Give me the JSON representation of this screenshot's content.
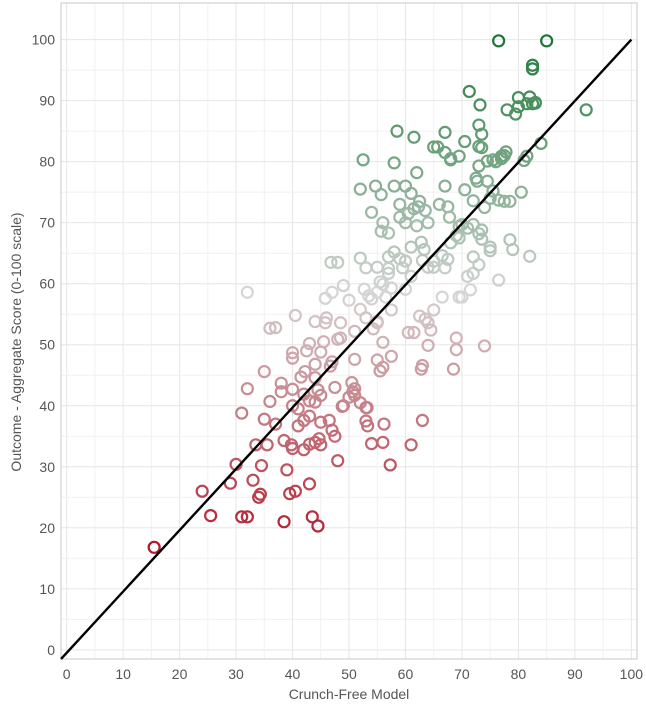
{
  "chart_data": {
    "type": "scatter",
    "title": "",
    "xlabel": "Crunch-Free Model",
    "ylabel": "Outcome - Aggregate Score (0-100 scale)",
    "xlim": [
      -1,
      101
    ],
    "ylim": [
      -1.5,
      106
    ],
    "x_ticks": [
      0,
      10,
      20,
      30,
      40,
      50,
      60,
      70,
      80,
      90,
      100
    ],
    "y_ticks": [
      0,
      10,
      20,
      30,
      40,
      50,
      60,
      70,
      80,
      90,
      100
    ],
    "grid": true,
    "legend": "none",
    "marker": "open-circle",
    "color_scale": {
      "encodes": "y",
      "domain": [
        17,
        100
      ],
      "low": "#b2182b",
      "mid": "#d6d6d6",
      "high": "#1b7837"
    },
    "reference_line": {
      "from": [
        -1,
        -1.5
      ],
      "to": [
        100,
        100
      ],
      "color": "#000000"
    },
    "points": [
      [
        15.5,
        16.8
      ],
      [
        24,
        26
      ],
      [
        25.5,
        22
      ],
      [
        29,
        27.3
      ],
      [
        30,
        30.4
      ],
      [
        31,
        38.8
      ],
      [
        31,
        21.8
      ],
      [
        32,
        21.8
      ],
      [
        32,
        42.8
      ],
      [
        32,
        58.6
      ],
      [
        33,
        27.8
      ],
      [
        33.5,
        33.6
      ],
      [
        34,
        25
      ],
      [
        34.3,
        25.5
      ],
      [
        34.5,
        30.2
      ],
      [
        35,
        45.6
      ],
      [
        35,
        37.8
      ],
      [
        35.5,
        33.6
      ],
      [
        36,
        52.7
      ],
      [
        36,
        40.7
      ],
      [
        37,
        52.8
      ],
      [
        37,
        37
      ],
      [
        38,
        43.7
      ],
      [
        38,
        42.3
      ],
      [
        38.5,
        21
      ],
      [
        38.5,
        34.3
      ],
      [
        39,
        29.5
      ],
      [
        39.5,
        25.6
      ],
      [
        39.8,
        33.6
      ],
      [
        40,
        33
      ],
      [
        40,
        40
      ],
      [
        40,
        42.7
      ],
      [
        40,
        47.8
      ],
      [
        40,
        48.7
      ],
      [
        40.5,
        26
      ],
      [
        40.5,
        54.8
      ],
      [
        41,
        36.7
      ],
      [
        41,
        39.5
      ],
      [
        41.5,
        44.7
      ],
      [
        42,
        32.8
      ],
      [
        42,
        37.6
      ],
      [
        42,
        41.9
      ],
      [
        42.2,
        45.6
      ],
      [
        42.5,
        49
      ],
      [
        43,
        33.7
      ],
      [
        43,
        38.3
      ],
      [
        43,
        40.8
      ],
      [
        43,
        27.2
      ],
      [
        43,
        50.2
      ],
      [
        43.5,
        21.8
      ],
      [
        44,
        34
      ],
      [
        44,
        40.6
      ],
      [
        44,
        44.6
      ],
      [
        44,
        46.8
      ],
      [
        44,
        53.8
      ],
      [
        44.5,
        20.3
      ],
      [
        44.5,
        42.6
      ],
      [
        44.7,
        34.6
      ],
      [
        45,
        33.6
      ],
      [
        45,
        37.3
      ],
      [
        45,
        41.7
      ],
      [
        45,
        48.8
      ],
      [
        45.5,
        50.5
      ],
      [
        45.8,
        57.6
      ],
      [
        45.8,
        53.6
      ],
      [
        46,
        54.4
      ],
      [
        46.5,
        37.6
      ],
      [
        46.7,
        46.5
      ],
      [
        46.8,
        63.5
      ],
      [
        47,
        36
      ],
      [
        47,
        58.6
      ],
      [
        47,
        47.2
      ],
      [
        47.5,
        35
      ],
      [
        47.5,
        43
      ],
      [
        48,
        63.5
      ],
      [
        48,
        31
      ],
      [
        48,
        50.9
      ],
      [
        48.5,
        53.6
      ],
      [
        48.5,
        51.1
      ],
      [
        48.8,
        39.9
      ],
      [
        49,
        59.7
      ],
      [
        49,
        40
      ],
      [
        50,
        57.3
      ],
      [
        50,
        41.4
      ],
      [
        50.5,
        43.8
      ],
      [
        50.7,
        42.3
      ],
      [
        51,
        42.8
      ],
      [
        51,
        41.7
      ],
      [
        51,
        47.6
      ],
      [
        51,
        52.2
      ],
      [
        52,
        55.8
      ],
      [
        52,
        64.2
      ],
      [
        52,
        40.5
      ],
      [
        52,
        75.5
      ],
      [
        52.5,
        80.3
      ],
      [
        52.7,
        59.1
      ],
      [
        53,
        62.6
      ],
      [
        53,
        39.7
      ],
      [
        53,
        54.4
      ],
      [
        53,
        37.5
      ],
      [
        53.2,
        39.7
      ],
      [
        53.3,
        36.7
      ],
      [
        53.5,
        58
      ],
      [
        54,
        57.5
      ],
      [
        54,
        71.7
      ],
      [
        54,
        33.8
      ],
      [
        54.3,
        52.6
      ],
      [
        54.7,
        76
      ],
      [
        55,
        62.7
      ],
      [
        55,
        53.6
      ],
      [
        55,
        47.5
      ],
      [
        55,
        58.6
      ],
      [
        55,
        53.8
      ],
      [
        55.5,
        60.3
      ],
      [
        55.5,
        45.7
      ],
      [
        55.7,
        74.6
      ],
      [
        55.7,
        68.6
      ],
      [
        56,
        70
      ],
      [
        56,
        34
      ],
      [
        56,
        59.9
      ],
      [
        56,
        46.3
      ],
      [
        56,
        50.4
      ],
      [
        56.2,
        37
      ],
      [
        56.5,
        57.8
      ],
      [
        57,
        64.4
      ],
      [
        57,
        61.7
      ],
      [
        57,
        62.5
      ],
      [
        57,
        68.3
      ],
      [
        57.3,
        30.3
      ],
      [
        57.5,
        59.3
      ],
      [
        57.5,
        55.7
      ],
      [
        57.5,
        48.1
      ],
      [
        58,
        76
      ],
      [
        58,
        65.2
      ],
      [
        58,
        79.8
      ],
      [
        58.5,
        85
      ],
      [
        59,
        64.1
      ],
      [
        59,
        70.9
      ],
      [
        59,
        73
      ],
      [
        59.5,
        62.6
      ],
      [
        60,
        59.1
      ],
      [
        60,
        70
      ],
      [
        60,
        63.7
      ],
      [
        60,
        76
      ],
      [
        60.5,
        71.5
      ],
      [
        60.5,
        52
      ],
      [
        61,
        66
      ],
      [
        61,
        33.6
      ],
      [
        61,
        61.2
      ],
      [
        61,
        74.8
      ],
      [
        61.5,
        52
      ],
      [
        61.5,
        84
      ],
      [
        61.5,
        72.3
      ],
      [
        62,
        78.2
      ],
      [
        62,
        69.5
      ],
      [
        62.3,
        72.6
      ],
      [
        62.5,
        54.7
      ],
      [
        62.5,
        73.5
      ],
      [
        62.8,
        66.8
      ],
      [
        62.8,
        46
      ],
      [
        63,
        46.6
      ],
      [
        63,
        37.6
      ],
      [
        63,
        63.8
      ],
      [
        63.3,
        65.6
      ],
      [
        63.5,
        54.2
      ],
      [
        63.5,
        72
      ],
      [
        64,
        70
      ],
      [
        64,
        62.7
      ],
      [
        64,
        49.9
      ],
      [
        64,
        53.6
      ],
      [
        64.5,
        52.4
      ],
      [
        65,
        63.7
      ],
      [
        65,
        82.4
      ],
      [
        65,
        62.7
      ],
      [
        65,
        55.7
      ],
      [
        65.7,
        82.4
      ],
      [
        66,
        73
      ],
      [
        66.5,
        57.8
      ],
      [
        66.5,
        64.6
      ],
      [
        67,
        76
      ],
      [
        67,
        84.8
      ],
      [
        67,
        62.6
      ],
      [
        67,
        81.5
      ],
      [
        67.5,
        72.6
      ],
      [
        67.5,
        64
      ],
      [
        67.8,
        70.9
      ],
      [
        68,
        80.5
      ],
      [
        68,
        66.7
      ],
      [
        68,
        80.3
      ],
      [
        68.5,
        46
      ],
      [
        69,
        49.2
      ],
      [
        69,
        67.9
      ],
      [
        69,
        51.1
      ],
      [
        69.5,
        57.8
      ],
      [
        69.5,
        69.4
      ],
      [
        69.5,
        80.9
      ],
      [
        69.5,
        67.5
      ],
      [
        70,
        57.8
      ],
      [
        70,
        69.7
      ],
      [
        70.5,
        75.4
      ],
      [
        70.5,
        83.3
      ],
      [
        71,
        61.2
      ],
      [
        71,
        69.1
      ],
      [
        71.3,
        91.5
      ],
      [
        71.5,
        59
      ],
      [
        72,
        73.6
      ],
      [
        72,
        61.7
      ],
      [
        72,
        69.7
      ],
      [
        72,
        64.4
      ],
      [
        72.5,
        77.3
      ],
      [
        72.7,
        76.8
      ],
      [
        73,
        79.3
      ],
      [
        73,
        86
      ],
      [
        73,
        82.5
      ],
      [
        73,
        63.1
      ],
      [
        73,
        68.2
      ],
      [
        73.2,
        89.3
      ],
      [
        73.5,
        82.3
      ],
      [
        73.5,
        84.5
      ],
      [
        73.5,
        67.3
      ],
      [
        73.5,
        68.8
      ],
      [
        74,
        49.8
      ],
      [
        74,
        72.5
      ],
      [
        74.5,
        76.8
      ],
      [
        74.5,
        80.1
      ],
      [
        75,
        66
      ],
      [
        75,
        74
      ],
      [
        75,
        65.4
      ],
      [
        75.5,
        75.2
      ],
      [
        75.5,
        80.3
      ],
      [
        76,
        80
      ],
      [
        76.5,
        99.8
      ],
      [
        76.5,
        73.7
      ],
      [
        76.5,
        60.6
      ],
      [
        77,
        80.9
      ],
      [
        77,
        80.5
      ],
      [
        77.5,
        81
      ],
      [
        77.5,
        73.5
      ],
      [
        77.8,
        81.6
      ],
      [
        78,
        88.5
      ],
      [
        78.5,
        67.2
      ],
      [
        78.5,
        73.5
      ],
      [
        79,
        65.6
      ],
      [
        79.5,
        87.8
      ],
      [
        80,
        89
      ],
      [
        80,
        90.5
      ],
      [
        80.5,
        75
      ],
      [
        81,
        80.2
      ],
      [
        81.5,
        80.9
      ],
      [
        81.5,
        89.5
      ],
      [
        82,
        64.5
      ],
      [
        82,
        90.6
      ],
      [
        82.5,
        89.5
      ],
      [
        82.5,
        95.8
      ],
      [
        82.5,
        95.2
      ],
      [
        83,
        89.7
      ],
      [
        83,
        89.6
      ],
      [
        84,
        83
      ],
      [
        85,
        99.8
      ],
      [
        92,
        88.5
      ]
    ]
  }
}
